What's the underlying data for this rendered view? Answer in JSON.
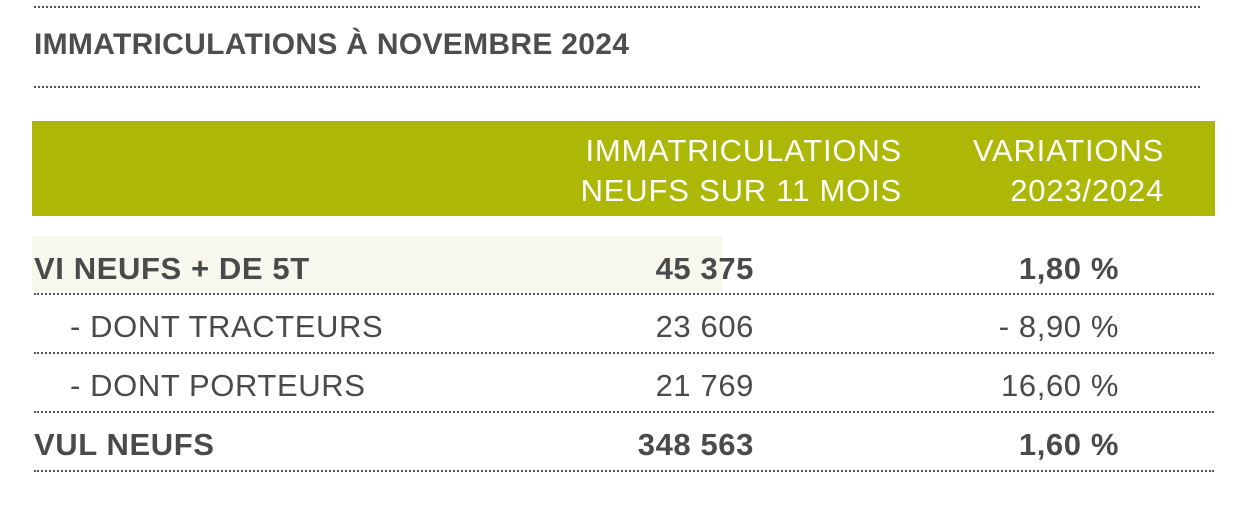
{
  "title": "IMMATRICULATIONS À NOVEMBRE 2024",
  "colors": {
    "header_band": "#acb805",
    "text": "#4a4a4a",
    "header_text": "#ffffff"
  },
  "table": {
    "headers": {
      "immatriculations_line1": "IMMATRICULATIONS",
      "immatriculations_line2": "NEUFS SUR 11 MOIS",
      "variations_line1": "VARIATIONS",
      "variations_line2": "2023/2024"
    },
    "rows": [
      {
        "label": "VI NEUFS + DE 5T",
        "immatriculations": "45 375",
        "variation": "1,80 %"
      },
      {
        "label": "- DONT TRACTEURS",
        "immatriculations": "23 606",
        "variation": "- 8,90 %"
      },
      {
        "label": "- DONT PORTEURS",
        "immatriculations": "21 769",
        "variation": "16,60 %"
      },
      {
        "label": "VUL NEUFS",
        "immatriculations": "348 563",
        "variation": "1,60 %"
      }
    ]
  }
}
